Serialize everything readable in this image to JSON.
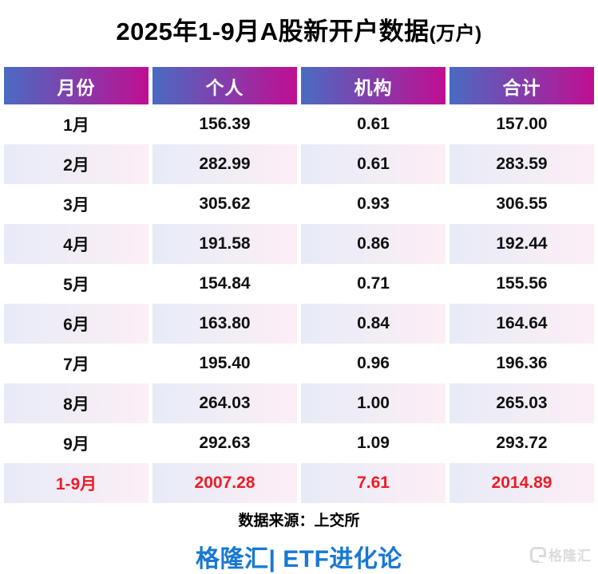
{
  "title": {
    "main": "2025年1-9月A股新开户数据",
    "unit": "(万户)"
  },
  "table": {
    "headers": [
      "月份",
      "个人",
      "机构",
      "合计"
    ],
    "rows": [
      {
        "cells": [
          "1月",
          "156.39",
          "0.61",
          "157.00"
        ]
      },
      {
        "cells": [
          "2月",
          "282.99",
          "0.61",
          "283.59"
        ]
      },
      {
        "cells": [
          "3月",
          "305.62",
          "0.93",
          "306.55"
        ]
      },
      {
        "cells": [
          "4月",
          "191.58",
          "0.86",
          "192.44"
        ]
      },
      {
        "cells": [
          "5月",
          "154.84",
          "0.71",
          "155.56"
        ]
      },
      {
        "cells": [
          "6月",
          "163.80",
          "0.84",
          "164.64"
        ]
      },
      {
        "cells": [
          "7月",
          "195.40",
          "0.96",
          "196.36"
        ]
      },
      {
        "cells": [
          "8月",
          "264.03",
          "1.00",
          "265.03"
        ]
      },
      {
        "cells": [
          "9月",
          "292.63",
          "1.09",
          "293.72"
        ]
      },
      {
        "cells": [
          "1-9月",
          "2007.28",
          "7.61",
          "2014.89"
        ]
      }
    ]
  },
  "footer": {
    "source": "数据来源：上交所",
    "brand": "格隆汇| ETF进化论"
  },
  "watermark": {
    "text": "格隆汇"
  },
  "colors": {
    "header_gradient_start": "#4a6bc3",
    "header_gradient_end": "#c00e92",
    "tint_gradient_start": "#e7ebf7",
    "tint_gradient_end": "#fdeef6",
    "total_row_text": "#ee1c25",
    "brand_blue": "#1778d2",
    "watermark_gray": "#dcdcde"
  },
  "chart_data": {
    "type": "table",
    "title": "2025年1-9月A股新开户数据(万户)",
    "columns": [
      "月份",
      "个人",
      "机构",
      "合计"
    ],
    "categories": [
      "1月",
      "2月",
      "3月",
      "4月",
      "5月",
      "6月",
      "7月",
      "8月",
      "9月"
    ],
    "series": [
      {
        "name": "个人",
        "values": [
          156.39,
          282.99,
          305.62,
          191.58,
          154.84,
          163.8,
          195.4,
          264.03,
          292.63
        ]
      },
      {
        "name": "机构",
        "values": [
          0.61,
          0.61,
          0.93,
          0.86,
          0.71,
          0.84,
          0.96,
          1.0,
          1.09
        ]
      },
      {
        "name": "合计",
        "values": [
          157.0,
          283.59,
          306.55,
          192.44,
          155.56,
          164.64,
          196.36,
          265.03,
          293.72
        ]
      }
    ],
    "totals": {
      "label": "1-9月",
      "个人": 2007.28,
      "机构": 7.61,
      "合计": 2014.89
    },
    "unit": "万户",
    "source": "上交所"
  }
}
